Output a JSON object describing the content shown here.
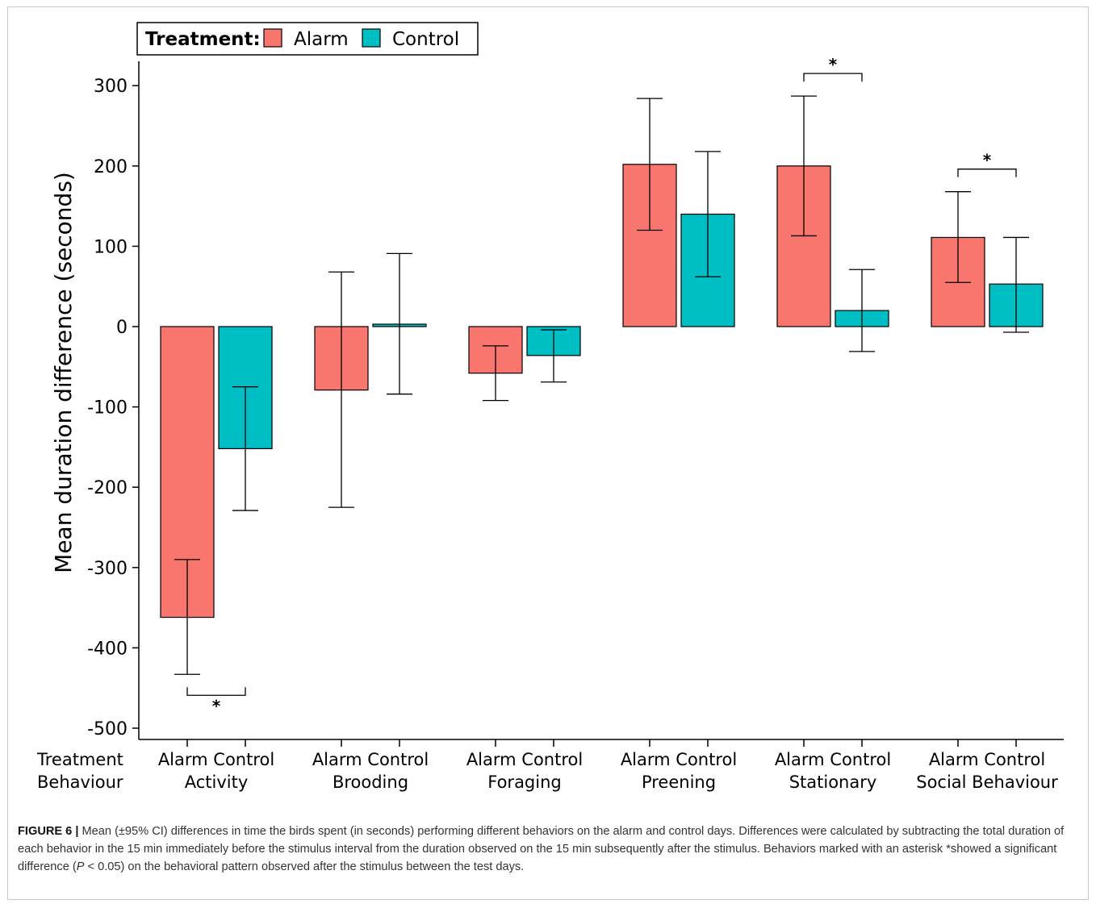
{
  "colors": {
    "alarm": "#F8766D",
    "control": "#00BFC4",
    "axis": "#000000"
  },
  "legend": {
    "title": "Treatment:",
    "items": [
      "Alarm",
      "Control"
    ]
  },
  "row_labels": {
    "treatment": "Treatment",
    "behaviour": "Behaviour"
  },
  "chart_data": {
    "type": "bar",
    "title": "",
    "ylabel": "Mean duration difference (seconds)",
    "xlabel": "",
    "ylim": [
      -500,
      330
    ],
    "yticks": [
      300,
      200,
      100,
      0,
      -100,
      -200,
      -300,
      -400,
      -500
    ],
    "ytick_labels": [
      "300",
      "200",
      "100",
      "0",
      "-100",
      "-200",
      "-300",
      "-400",
      "-500"
    ],
    "grid": false,
    "legend_position": "top-left",
    "categories": [
      "Activity",
      "Brooding",
      "Foraging",
      "Preening",
      "Stationary",
      "Social Behaviour"
    ],
    "series": [
      {
        "name": "Alarm",
        "values": [
          -362,
          -79,
          -58,
          202,
          200,
          111
        ],
        "ci_low": [
          -433,
          -225,
          -92,
          120,
          113,
          55
        ],
        "ci_high": [
          -290,
          68,
          -24,
          284,
          287,
          168
        ]
      },
      {
        "name": "Control",
        "values": [
          -152,
          3,
          -36,
          140,
          20,
          53
        ],
        "ci_low": [
          -229,
          -84,
          -69,
          62,
          -31,
          -7
        ],
        "ci_high": [
          -75,
          91,
          -4,
          218,
          71,
          111
        ]
      }
    ],
    "significance": [
      {
        "category": "Activity",
        "label": "*",
        "position": "below"
      },
      {
        "category": "Stationary",
        "label": "*",
        "position": "above"
      },
      {
        "category": "Social Behaviour",
        "label": "*",
        "position": "above"
      }
    ]
  },
  "caption": {
    "label": "FIGURE 6 |",
    "text_before_p": " Mean (±95% CI) differences in time the birds spent (in seconds) performing different behaviors on the alarm and control days. Differences were calculated by subtracting the total duration of each behavior in the 15 min immediately before the stimulus interval from the duration observed on the 15 min subsequently after the stimulus. Behaviors marked with an asterisk *showed a significant difference (",
    "p_symbol": "P",
    "text_after_p": " < 0.05) on the behavioral pattern observed after the stimulus between the test days."
  }
}
